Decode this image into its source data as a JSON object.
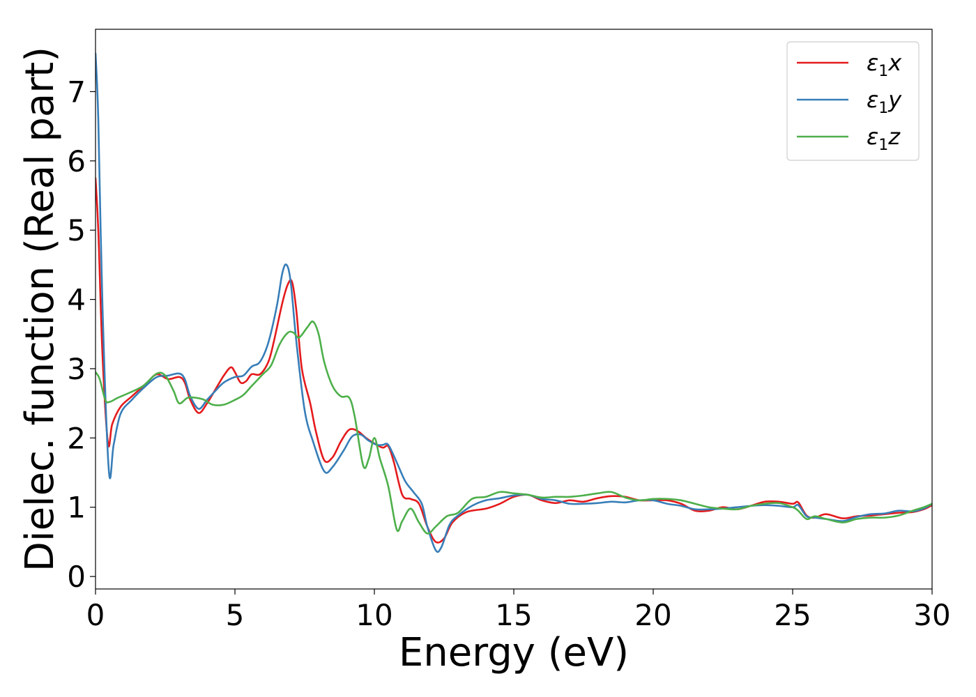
{
  "chart_data": {
    "type": "line",
    "xlabel": "Energy (eV)",
    "ylabel": "Dielec. function (Real part)",
    "xlim": [
      0,
      30
    ],
    "ylim": [
      -0.18,
      7.9
    ],
    "xticks": [
      0,
      5,
      10,
      15,
      20,
      25,
      30
    ],
    "xtick_labels": [
      "0",
      "5",
      "10",
      "15",
      "20",
      "25",
      "30"
    ],
    "yticks": [
      0,
      1,
      2,
      3,
      4,
      5,
      6,
      7
    ],
    "ytick_labels": [
      "0",
      "1",
      "2",
      "3",
      "4",
      "5",
      "6",
      "7"
    ],
    "grid": false,
    "legend_position": "top-right",
    "series": [
      {
        "name": "ε₁x",
        "legend_main": "ε",
        "legend_sub": "1",
        "legend_suffix": "x",
        "color": "#e41a1c",
        "points": [
          [
            0,
            5.75
          ],
          [
            0.1,
            5.0
          ],
          [
            0.25,
            3.2
          ],
          [
            0.45,
            1.92
          ],
          [
            0.6,
            2.2
          ],
          [
            0.9,
            2.45
          ],
          [
            1.3,
            2.6
          ],
          [
            1.8,
            2.78
          ],
          [
            2.2,
            2.92
          ],
          [
            2.6,
            2.85
          ],
          [
            3.0,
            2.88
          ],
          [
            3.2,
            2.8
          ],
          [
            3.4,
            2.55
          ],
          [
            3.7,
            2.36
          ],
          [
            4.0,
            2.5
          ],
          [
            4.3,
            2.7
          ],
          [
            4.6,
            2.9
          ],
          [
            4.85,
            3.02
          ],
          [
            5.0,
            2.95
          ],
          [
            5.2,
            2.8
          ],
          [
            5.4,
            2.82
          ],
          [
            5.6,
            2.92
          ],
          [
            5.9,
            2.92
          ],
          [
            6.2,
            3.1
          ],
          [
            6.4,
            3.4
          ],
          [
            6.7,
            3.95
          ],
          [
            6.9,
            4.22
          ],
          [
            7.05,
            4.25
          ],
          [
            7.2,
            3.85
          ],
          [
            7.4,
            3.0
          ],
          [
            7.7,
            2.5
          ],
          [
            7.9,
            2.1
          ],
          [
            8.2,
            1.68
          ],
          [
            8.5,
            1.72
          ],
          [
            8.8,
            1.95
          ],
          [
            9.1,
            2.12
          ],
          [
            9.4,
            2.1
          ],
          [
            9.7,
            2.0
          ],
          [
            10.0,
            1.92
          ],
          [
            10.3,
            1.86
          ],
          [
            10.5,
            1.88
          ],
          [
            10.7,
            1.65
          ],
          [
            11.0,
            1.18
          ],
          [
            11.3,
            1.12
          ],
          [
            11.6,
            1.05
          ],
          [
            11.9,
            0.72
          ],
          [
            12.2,
            0.5
          ],
          [
            12.5,
            0.55
          ],
          [
            12.8,
            0.78
          ],
          [
            13.3,
            0.93
          ],
          [
            14.0,
            0.98
          ],
          [
            14.5,
            1.05
          ],
          [
            15.0,
            1.15
          ],
          [
            15.5,
            1.18
          ],
          [
            16.0,
            1.1
          ],
          [
            16.5,
            1.06
          ],
          [
            17.0,
            1.1
          ],
          [
            17.5,
            1.08
          ],
          [
            18.0,
            1.13
          ],
          [
            18.5,
            1.16
          ],
          [
            19.0,
            1.15
          ],
          [
            19.5,
            1.1
          ],
          [
            20.0,
            1.1
          ],
          [
            20.5,
            1.1
          ],
          [
            21.0,
            1.05
          ],
          [
            21.5,
            0.95
          ],
          [
            22.0,
            0.95
          ],
          [
            22.5,
            1.0
          ],
          [
            23.0,
            0.97
          ],
          [
            23.5,
            1.02
          ],
          [
            24.0,
            1.08
          ],
          [
            24.5,
            1.08
          ],
          [
            25.0,
            1.05
          ],
          [
            25.2,
            1.07
          ],
          [
            25.5,
            0.88
          ],
          [
            25.8,
            0.85
          ],
          [
            26.2,
            0.9
          ],
          [
            26.8,
            0.84
          ],
          [
            27.3,
            0.87
          ],
          [
            27.8,
            0.88
          ],
          [
            28.3,
            0.9
          ],
          [
            28.8,
            0.92
          ],
          [
            29.3,
            0.93
          ],
          [
            29.7,
            0.97
          ],
          [
            30.0,
            1.03
          ]
        ]
      },
      {
        "name": "ε₁y",
        "legend_main": "ε",
        "legend_sub": "1",
        "legend_suffix": "y",
        "color": "#377eb8",
        "points": [
          [
            0,
            7.55
          ],
          [
            0.1,
            6.6
          ],
          [
            0.25,
            3.9
          ],
          [
            0.48,
            1.52
          ],
          [
            0.65,
            1.9
          ],
          [
            0.9,
            2.35
          ],
          [
            1.3,
            2.55
          ],
          [
            1.8,
            2.75
          ],
          [
            2.2,
            2.88
          ],
          [
            2.6,
            2.9
          ],
          [
            3.0,
            2.93
          ],
          [
            3.2,
            2.85
          ],
          [
            3.4,
            2.6
          ],
          [
            3.7,
            2.42
          ],
          [
            4.0,
            2.55
          ],
          [
            4.3,
            2.68
          ],
          [
            4.6,
            2.8
          ],
          [
            5.0,
            2.88
          ],
          [
            5.3,
            2.9
          ],
          [
            5.6,
            3.03
          ],
          [
            5.9,
            3.1
          ],
          [
            6.2,
            3.38
          ],
          [
            6.5,
            3.9
          ],
          [
            6.7,
            4.38
          ],
          [
            6.85,
            4.5
          ],
          [
            7.0,
            4.25
          ],
          [
            7.2,
            3.4
          ],
          [
            7.5,
            2.4
          ],
          [
            7.8,
            1.95
          ],
          [
            8.2,
            1.52
          ],
          [
            8.5,
            1.58
          ],
          [
            8.9,
            1.82
          ],
          [
            9.2,
            2.02
          ],
          [
            9.5,
            2.05
          ],
          [
            9.8,
            1.96
          ],
          [
            10.1,
            1.9
          ],
          [
            10.3,
            1.9
          ],
          [
            10.5,
            1.9
          ],
          [
            10.8,
            1.65
          ],
          [
            11.1,
            1.38
          ],
          [
            11.4,
            1.22
          ],
          [
            11.7,
            1.05
          ],
          [
            11.9,
            0.72
          ],
          [
            12.2,
            0.38
          ],
          [
            12.4,
            0.42
          ],
          [
            12.7,
            0.75
          ],
          [
            13.0,
            0.88
          ],
          [
            13.5,
            1.02
          ],
          [
            14.0,
            1.1
          ],
          [
            14.5,
            1.13
          ],
          [
            15.0,
            1.17
          ],
          [
            15.5,
            1.18
          ],
          [
            16.0,
            1.12
          ],
          [
            16.5,
            1.1
          ],
          [
            17.0,
            1.05
          ],
          [
            17.5,
            1.05
          ],
          [
            18.0,
            1.06
          ],
          [
            18.5,
            1.08
          ],
          [
            19.0,
            1.07
          ],
          [
            19.5,
            1.1
          ],
          [
            20.0,
            1.1
          ],
          [
            20.5,
            1.05
          ],
          [
            21.0,
            1.02
          ],
          [
            21.5,
            0.97
          ],
          [
            22.0,
            0.97
          ],
          [
            22.5,
            0.98
          ],
          [
            23.0,
            1.0
          ],
          [
            23.5,
            1.02
          ],
          [
            24.0,
            1.03
          ],
          [
            24.5,
            1.02
          ],
          [
            25.0,
            1.0
          ],
          [
            25.2,
            1.03
          ],
          [
            25.5,
            0.87
          ],
          [
            25.8,
            0.85
          ],
          [
            26.2,
            0.83
          ],
          [
            26.8,
            0.8
          ],
          [
            27.3,
            0.86
          ],
          [
            27.8,
            0.9
          ],
          [
            28.3,
            0.91
          ],
          [
            28.8,
            0.95
          ],
          [
            29.3,
            0.94
          ],
          [
            29.7,
            0.98
          ],
          [
            30.0,
            1.05
          ]
        ]
      },
      {
        "name": "ε₁z",
        "legend_main": "ε",
        "legend_sub": "1",
        "legend_suffix": "z",
        "color": "#4daf4a",
        "points": [
          [
            0,
            2.95
          ],
          [
            0.15,
            2.85
          ],
          [
            0.35,
            2.55
          ],
          [
            0.5,
            2.52
          ],
          [
            0.8,
            2.58
          ],
          [
            1.2,
            2.65
          ],
          [
            1.7,
            2.75
          ],
          [
            2.2,
            2.93
          ],
          [
            2.5,
            2.9
          ],
          [
            2.8,
            2.68
          ],
          [
            3.0,
            2.5
          ],
          [
            3.3,
            2.58
          ],
          [
            3.6,
            2.58
          ],
          [
            3.9,
            2.55
          ],
          [
            4.2,
            2.48
          ],
          [
            4.6,
            2.48
          ],
          [
            5.0,
            2.55
          ],
          [
            5.3,
            2.62
          ],
          [
            5.6,
            2.75
          ],
          [
            6.0,
            2.92
          ],
          [
            6.3,
            3.05
          ],
          [
            6.6,
            3.35
          ],
          [
            6.9,
            3.52
          ],
          [
            7.1,
            3.52
          ],
          [
            7.3,
            3.45
          ],
          [
            7.6,
            3.6
          ],
          [
            7.8,
            3.68
          ],
          [
            8.0,
            3.5
          ],
          [
            8.2,
            3.1
          ],
          [
            8.5,
            2.75
          ],
          [
            8.8,
            2.6
          ],
          [
            9.1,
            2.58
          ],
          [
            9.3,
            2.3
          ],
          [
            9.6,
            1.6
          ],
          [
            9.8,
            1.7
          ],
          [
            10.0,
            2.0
          ],
          [
            10.2,
            1.7
          ],
          [
            10.5,
            1.3
          ],
          [
            10.8,
            0.68
          ],
          [
            11.0,
            0.8
          ],
          [
            11.3,
            0.98
          ],
          [
            11.6,
            0.78
          ],
          [
            11.9,
            0.62
          ],
          [
            12.2,
            0.72
          ],
          [
            12.6,
            0.87
          ],
          [
            13.0,
            0.92
          ],
          [
            13.5,
            1.12
          ],
          [
            14.0,
            1.15
          ],
          [
            14.5,
            1.22
          ],
          [
            15.0,
            1.2
          ],
          [
            15.5,
            1.18
          ],
          [
            16.0,
            1.14
          ],
          [
            16.5,
            1.15
          ],
          [
            17.0,
            1.15
          ],
          [
            17.5,
            1.17
          ],
          [
            18.0,
            1.2
          ],
          [
            18.5,
            1.22
          ],
          [
            19.0,
            1.14
          ],
          [
            19.5,
            1.1
          ],
          [
            20.0,
            1.12
          ],
          [
            20.5,
            1.12
          ],
          [
            21.0,
            1.1
          ],
          [
            21.5,
            1.05
          ],
          [
            22.0,
            1.0
          ],
          [
            22.5,
            0.98
          ],
          [
            23.0,
            0.97
          ],
          [
            23.5,
            1.02
          ],
          [
            24.0,
            1.05
          ],
          [
            24.5,
            1.06
          ],
          [
            25.0,
            1.0
          ],
          [
            25.2,
            0.95
          ],
          [
            25.5,
            0.83
          ],
          [
            25.8,
            0.87
          ],
          [
            26.2,
            0.83
          ],
          [
            26.8,
            0.78
          ],
          [
            27.3,
            0.83
          ],
          [
            27.8,
            0.85
          ],
          [
            28.3,
            0.85
          ],
          [
            28.8,
            0.88
          ],
          [
            29.3,
            0.95
          ],
          [
            29.7,
            1.0
          ],
          [
            30.0,
            1.05
          ]
        ]
      }
    ]
  }
}
